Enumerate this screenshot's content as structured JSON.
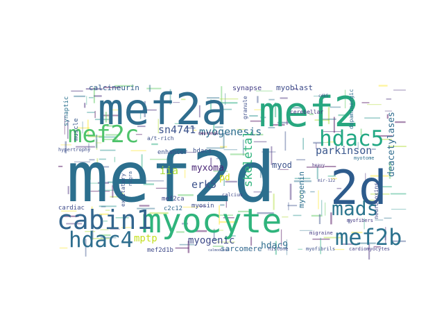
{
  "cloud": {
    "words": [
      {
        "text": "mef2d",
        "color": "#2c6f8e"
      },
      {
        "text": "mef2a",
        "color": "#2f6d8e"
      },
      {
        "text": "mef2",
        "color": "#27a77f"
      },
      {
        "text": "2d",
        "color": "#2d5b8c"
      },
      {
        "text": "myocyte",
        "color": "#2fb47c"
      },
      {
        "text": "cabin1",
        "color": "#32658e"
      },
      {
        "text": "mef2c",
        "color": "#4ec36b"
      },
      {
        "text": "hdac4",
        "color": "#2e6e8e"
      },
      {
        "text": "mef2b",
        "color": "#2c728e"
      },
      {
        "text": "mads",
        "color": "#2b758e"
      },
      {
        "text": "hdac5",
        "color": "#22a884"
      },
      {
        "text": "sn4741",
        "color": "#3b528b"
      },
      {
        "text": "myogenesis",
        "color": "#2e6f8e"
      },
      {
        "text": "parkinson",
        "color": "#39568c"
      },
      {
        "text": "mptp",
        "color": "#c5e021"
      },
      {
        "text": "myogenic",
        "color": "#3e4a89"
      },
      {
        "text": "erk5",
        "color": "#3b528b"
      },
      {
        "text": "myxoma",
        "color": "#482475"
      },
      {
        "text": "myod",
        "color": "#3b528b"
      },
      {
        "text": "skeletal",
        "color": "#2eb37c"
      },
      {
        "text": "iia",
        "color": "#a8db34"
      },
      {
        "text": "hdac9",
        "color": "#2e6e8e"
      },
      {
        "text": "sarcomere",
        "color": "#31688e"
      },
      {
        "text": "mef2d1b",
        "color": "#3e4989"
      },
      {
        "text": "myogenin",
        "color": "#2d708e"
      },
      {
        "text": "deacetylases",
        "color": "#2f6c8e"
      },
      {
        "text": "calcineurin",
        "color": "#355f8d"
      },
      {
        "text": "myoblast",
        "color": "#3e4c8a"
      },
      {
        "text": "synapse",
        "color": "#433e85"
      },
      {
        "text": "muscle",
        "color": "#38598c"
      },
      {
        "text": "synaptic",
        "color": "#2c718e"
      },
      {
        "text": "hdacs",
        "color": "#3b528b"
      },
      {
        "text": "myosin",
        "color": "#3d4e8a"
      },
      {
        "text": "mef2ca",
        "color": "#3f4788"
      },
      {
        "text": "c2c12",
        "color": "#31688e"
      },
      {
        "text": "enhancer",
        "color": "#3c508b"
      },
      {
        "text": "a/t-rich",
        "color": "#3c4f8a"
      },
      {
        "text": "pd",
        "color": "#d8e219"
      },
      {
        "text": "cardiac",
        "color": "#3e4a89"
      },
      {
        "text": "granule",
        "color": "#3d4e8a"
      },
      {
        "text": "cerebellar",
        "color": "#453882"
      },
      {
        "text": "dopaminergic",
        "color": "#2f6c8e"
      },
      {
        "text": "excitatory",
        "color": "#3b528b"
      },
      {
        "text": "neurotoxins",
        "color": "#3e4989"
      },
      {
        "text": "myofibers",
        "color": "#443983"
      },
      {
        "text": "myofibrils",
        "color": "#3c508b"
      },
      {
        "text": "cardiomyocytes",
        "color": "#433e85"
      },
      {
        "text": "hypertrophy",
        "color": "#3d4d8a"
      },
      {
        "text": "calcium",
        "color": "#3f4889"
      },
      {
        "text": "histone",
        "color": "#3e4a89"
      },
      {
        "text": "migraine",
        "color": "#443983"
      },
      {
        "text": "neuronal",
        "color": "#440154"
      },
      {
        "text": "myotome",
        "color": "#2d708e"
      },
      {
        "text": "heavy",
        "color": "#472c7a"
      },
      {
        "text": "nigra",
        "color": "#38598c"
      },
      {
        "text": "cdk5",
        "color": "#3b528b"
      },
      {
        "text": "mir-122",
        "color": "#3f4788"
      },
      {
        "text": "calmodulin",
        "color": "#3d4e8a"
      }
    ]
  }
}
